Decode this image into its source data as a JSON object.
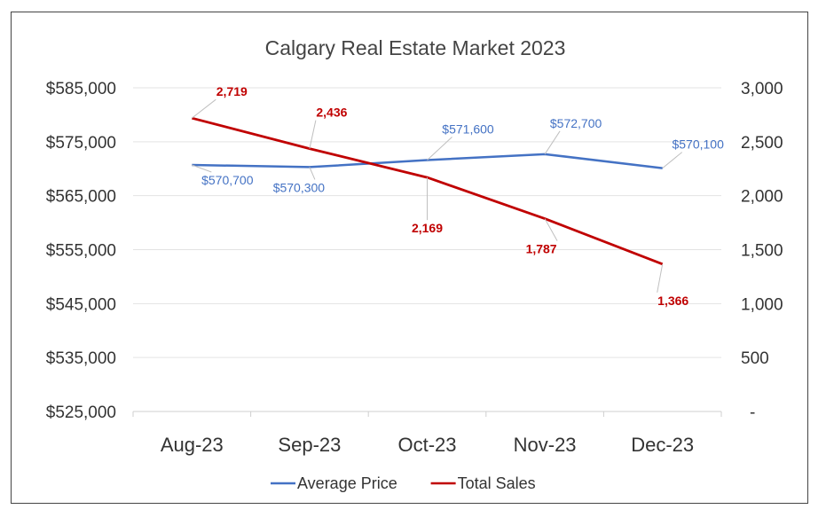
{
  "chart_data": {
    "type": "line",
    "title": "Calgary Real Estate Market 2023",
    "categories": [
      "Aug-23",
      "Sep-23",
      "Oct-23",
      "Nov-23",
      "Dec-23"
    ],
    "series": [
      {
        "name": "Average Price",
        "axis": "left",
        "color": "#4472C4",
        "values": [
          570700,
          570300,
          571600,
          572700,
          570100
        ],
        "labels": [
          "$570,700",
          "$570,300",
          "$571,600",
          "$572,700",
          "$570,100"
        ]
      },
      {
        "name": "Total Sales",
        "axis": "right",
        "color": "#C00000",
        "values": [
          2719,
          2436,
          2169,
          1787,
          1366
        ],
        "labels": [
          "2,719",
          "2,436",
          "2,169",
          "1,787",
          "1,366"
        ]
      }
    ],
    "y_left": {
      "min": 525000,
      "max": 585000,
      "ticks": [
        "$525,000",
        "$535,000",
        "$545,000",
        "$555,000",
        "$565,000",
        "$575,000",
        "$585,000"
      ]
    },
    "y_right": {
      "min": 0,
      "max": 3000,
      "ticks": [
        "-",
        "500",
        "1,000",
        "1,500",
        "2,000",
        "2,500",
        "3,000"
      ]
    },
    "grid": true,
    "legend": "bottom"
  }
}
